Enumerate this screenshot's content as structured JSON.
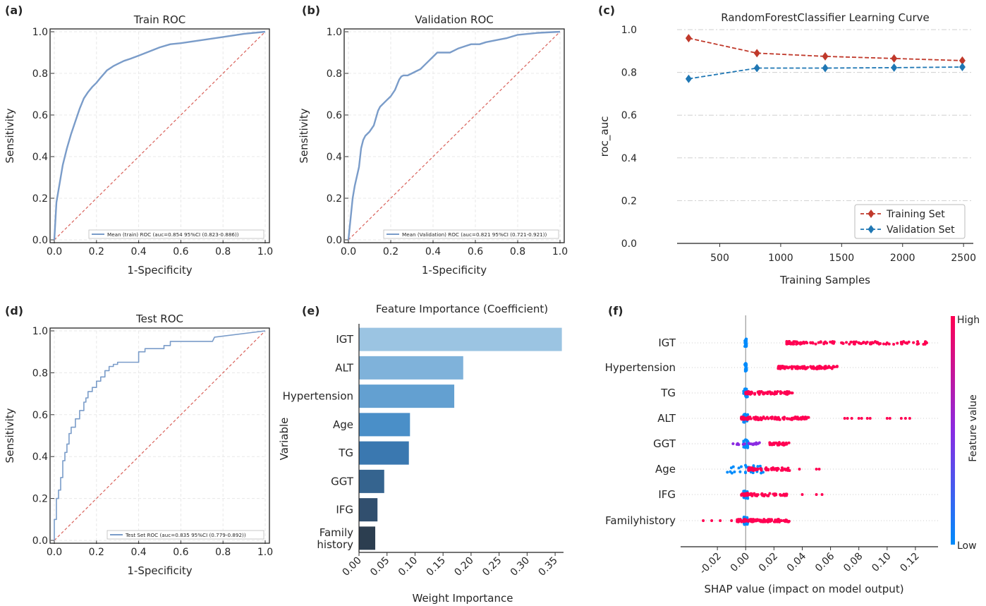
{
  "colors": {
    "roc_line": "#7a9cc9",
    "diagonal": "#d9615a",
    "training": "#c0392b",
    "validation": "#1f77b4",
    "grid": "#e8e8e8",
    "shap_high": "#ff0052",
    "shap_mid": "#8a2be2",
    "shap_low": "#008bfb",
    "bars": [
      "#9bc4e2",
      "#7fb2da",
      "#63a0d1",
      "#4a8fc8",
      "#3a78b0",
      "#35648f",
      "#314f6e",
      "#2c3e50"
    ]
  },
  "chart_data": [
    {
      "panel_label": "(a)",
      "type": "line",
      "title": "Train ROC",
      "xlabel": "1-Specificity",
      "ylabel": "Sensitivity",
      "xlim": [
        0,
        1
      ],
      "ylim": [
        0,
        1
      ],
      "xticks": [
        "0.0",
        "0.2",
        "0.4",
        "0.6",
        "0.8",
        "1.0"
      ],
      "yticks": [
        "0.0",
        "0.2",
        "0.4",
        "0.6",
        "0.8",
        "1.0"
      ],
      "grid": true,
      "legend_position": "lower-right",
      "series": [
        {
          "name": "Mean (train) ROC (auc=0.854 95%CI (0.823-0.886))",
          "x": [
            0,
            0.01,
            0.02,
            0.04,
            0.06,
            0.08,
            0.1,
            0.12,
            0.14,
            0.16,
            0.18,
            0.2,
            0.22,
            0.25,
            0.28,
            0.3,
            0.33,
            0.36,
            0.4,
            0.45,
            0.5,
            0.55,
            0.6,
            0.7,
            0.8,
            0.9,
            1.0
          ],
          "y": [
            0,
            0.18,
            0.24,
            0.36,
            0.44,
            0.51,
            0.57,
            0.63,
            0.68,
            0.71,
            0.735,
            0.755,
            0.78,
            0.815,
            0.835,
            0.845,
            0.86,
            0.87,
            0.885,
            0.905,
            0.925,
            0.94,
            0.945,
            0.96,
            0.975,
            0.99,
            1.0
          ]
        },
        {
          "name": "",
          "kind": "diagonal",
          "x": [
            0,
            1
          ],
          "y": [
            0,
            1
          ]
        }
      ]
    },
    {
      "panel_label": "(b)",
      "type": "line",
      "title": "Validation ROC",
      "xlabel": "1-Specificity",
      "ylabel": "Sensitivity",
      "xlim": [
        0,
        1
      ],
      "ylim": [
        0,
        1
      ],
      "xticks": [
        "0.0",
        "0.2",
        "0.4",
        "0.6",
        "0.8",
        "1.0"
      ],
      "yticks": [
        "0.0",
        "0.2",
        "0.4",
        "0.6",
        "0.8",
        "1.0"
      ],
      "grid": true,
      "legend_position": "lower-right",
      "series": [
        {
          "name": "Mean (Validation) ROC (auc=0.821 95%CI (0.721-0.921))",
          "x": [
            0,
            0.01,
            0.02,
            0.03,
            0.05,
            0.06,
            0.07,
            0.08,
            0.1,
            0.12,
            0.14,
            0.15,
            0.16,
            0.18,
            0.2,
            0.22,
            0.24,
            0.25,
            0.26,
            0.28,
            0.3,
            0.32,
            0.34,
            0.36,
            0.38,
            0.4,
            0.42,
            0.45,
            0.48,
            0.5,
            0.52,
            0.55,
            0.58,
            0.6,
            0.62,
            0.65,
            0.7,
            0.75,
            0.8,
            0.9,
            1.0
          ],
          "y": [
            0,
            0.1,
            0.2,
            0.26,
            0.35,
            0.44,
            0.48,
            0.5,
            0.52,
            0.55,
            0.62,
            0.64,
            0.65,
            0.67,
            0.69,
            0.72,
            0.77,
            0.785,
            0.79,
            0.79,
            0.8,
            0.81,
            0.82,
            0.84,
            0.86,
            0.88,
            0.9,
            0.9,
            0.9,
            0.91,
            0.92,
            0.93,
            0.94,
            0.94,
            0.94,
            0.95,
            0.96,
            0.97,
            0.985,
            0.995,
            1.0
          ]
        },
        {
          "name": "",
          "kind": "diagonal",
          "x": [
            0,
            1
          ],
          "y": [
            0,
            1
          ]
        }
      ]
    },
    {
      "panel_label": "(c)",
      "type": "line",
      "title": "RandomForestClassifier Learning Curve",
      "xlabel": "Training Samples",
      "ylabel": "roc_auc",
      "xlim": [
        150,
        2580
      ],
      "ylim": [
        0,
        1.0
      ],
      "xticks": [
        "500",
        "1000",
        "1500",
        "2000",
        "2500"
      ],
      "yticks": [
        "0.0",
        "0.2",
        "0.4",
        "0.6",
        "0.8",
        "1.0"
      ],
      "grid": true,
      "legend_position": "lower-right",
      "series": [
        {
          "name": "Training Set",
          "x": [
            245,
            805,
            1365,
            1930,
            2490
          ],
          "y": [
            0.96,
            0.89,
            0.875,
            0.865,
            0.855
          ]
        },
        {
          "name": "Validation Set",
          "x": [
            245,
            805,
            1365,
            1930,
            2490
          ],
          "y": [
            0.77,
            0.82,
            0.82,
            0.822,
            0.825
          ]
        }
      ]
    },
    {
      "panel_label": "(d)",
      "type": "line",
      "title": "Test ROC",
      "xlabel": "1-Specificity",
      "ylabel": "Sensitivity",
      "xlim": [
        0,
        1
      ],
      "ylim": [
        0,
        1
      ],
      "xticks": [
        "0.0",
        "0.2",
        "0.4",
        "0.6",
        "0.8",
        "1.0"
      ],
      "yticks": [
        "0.0",
        "0.2",
        "0.4",
        "0.6",
        "0.8",
        "1.0"
      ],
      "grid": true,
      "legend_position": "lower-right",
      "series": [
        {
          "name": "Test Set ROC (auc=0.835 95%CI (0.779-0.892))",
          "x": [
            0,
            0,
            0.01,
            0.01,
            0.02,
            0.02,
            0.03,
            0.03,
            0.04,
            0.04,
            0.05,
            0.05,
            0.06,
            0.06,
            0.07,
            0.07,
            0.08,
            0.08,
            0.1,
            0.1,
            0.12,
            0.12,
            0.14,
            0.14,
            0.15,
            0.15,
            0.16,
            0.16,
            0.18,
            0.18,
            0.2,
            0.2,
            0.22,
            0.22,
            0.24,
            0.24,
            0.26,
            0.26,
            0.28,
            0.28,
            0.3,
            0.3,
            0.33,
            0.33,
            0.4,
            0.4,
            0.43,
            0.43,
            0.52,
            0.52,
            0.55,
            0.55,
            0.75,
            0.76,
            1.0
          ],
          "y": [
            0,
            0.1,
            0.1,
            0.2,
            0.2,
            0.24,
            0.24,
            0.3,
            0.3,
            0.38,
            0.38,
            0.42,
            0.42,
            0.46,
            0.46,
            0.51,
            0.51,
            0.54,
            0.54,
            0.58,
            0.58,
            0.62,
            0.62,
            0.66,
            0.66,
            0.68,
            0.68,
            0.71,
            0.71,
            0.73,
            0.73,
            0.76,
            0.76,
            0.78,
            0.78,
            0.81,
            0.81,
            0.83,
            0.83,
            0.84,
            0.84,
            0.85,
            0.85,
            0.85,
            0.85,
            0.9,
            0.9,
            0.915,
            0.915,
            0.93,
            0.93,
            0.95,
            0.95,
            0.97,
            1.0
          ]
        },
        {
          "name": "",
          "kind": "diagonal",
          "x": [
            0,
            1
          ],
          "y": [
            0,
            1
          ]
        }
      ]
    },
    {
      "panel_label": "(e)",
      "type": "bar",
      "orientation": "horizontal",
      "title": "Feature Importance (Coefficient)",
      "xlabel": "Weight Importance",
      "ylabel": "Variable",
      "xlim": [
        0,
        0.365
      ],
      "xticks": [
        "0.00",
        "0.05",
        "0.10",
        "0.15",
        "0.20",
        "0.25",
        "0.30",
        "0.35"
      ],
      "categories": [
        "IGT",
        "ALT",
        "Hypertension",
        "Age",
        "TG",
        "GGT",
        "IFG",
        "Family\nhistory"
      ],
      "values": [
        0.362,
        0.186,
        0.17,
        0.091,
        0.089,
        0.045,
        0.033,
        0.029
      ]
    },
    {
      "panel_label": "(f)",
      "type": "scatter",
      "subtype": "shap_beeswarm",
      "xlabel": "SHAP value (impact on model output)",
      "xlim": [
        -0.046,
        0.136
      ],
      "xticks": [
        "-0.02",
        "0.00",
        "0.02",
        "0.04",
        "0.06",
        "0.08",
        "0.10",
        "0.12"
      ],
      "colorbar_label": "Feature value",
      "colorbar_high": "High",
      "colorbar_low": "Low",
      "features": [
        {
          "name": "IGT",
          "high_range": [
            0.029,
            0.128
          ],
          "high_n": 110,
          "outliers": [
            0.1,
            0.113,
            0.127,
            0.128,
            0.09,
            0.093,
            0.083,
            0.085
          ],
          "mid_range": null,
          "low_spread": 0.0
        },
        {
          "name": "Hypertension",
          "high_range": [
            0.023,
            0.065
          ],
          "high_n": 110,
          "outliers": [],
          "mid_range": null,
          "low_spread": 0.0
        },
        {
          "name": "TG",
          "high_range": [
            0.0,
            0.033
          ],
          "high_n": 70,
          "outliers": [
            0.033
          ],
          "mid_range": null,
          "low_spread": 0.001
        },
        {
          "name": "ALT",
          "high_range": [
            -0.003,
            0.046
          ],
          "high_n": 120,
          "outliers": [
            0.07,
            0.072,
            0.075,
            0.08,
            0.082,
            0.086,
            0.088,
            0.1,
            0.102,
            0.11,
            0.113,
            0.116
          ],
          "mid_range": null,
          "low_spread": 0.001
        },
        {
          "name": "GGT",
          "high_range": [
            0.017,
            0.031
          ],
          "high_n": 30,
          "outliers": [],
          "mid_range": [
            -0.01,
            0.025
          ],
          "low_spread": 0.001
        },
        {
          "name": "Age",
          "high_range": [
            0.002,
            0.031
          ],
          "high_n": 70,
          "outliers": [
            0.038,
            0.05,
            0.052
          ],
          "mid_range": null,
          "low_spread": 0.013
        },
        {
          "name": "IFG",
          "high_range": [
            -0.003,
            0.03
          ],
          "high_n": 60,
          "outliers": [
            0.04,
            0.05,
            0.054
          ],
          "mid_range": null,
          "low_spread": 0.001
        },
        {
          "name": "Familyhistory",
          "high_range": [
            -0.006,
            0.031
          ],
          "high_n": 110,
          "outliers": [
            -0.03,
            -0.024,
            -0.018,
            -0.01
          ],
          "mid_range": null,
          "low_spread": 0.001
        }
      ]
    }
  ]
}
